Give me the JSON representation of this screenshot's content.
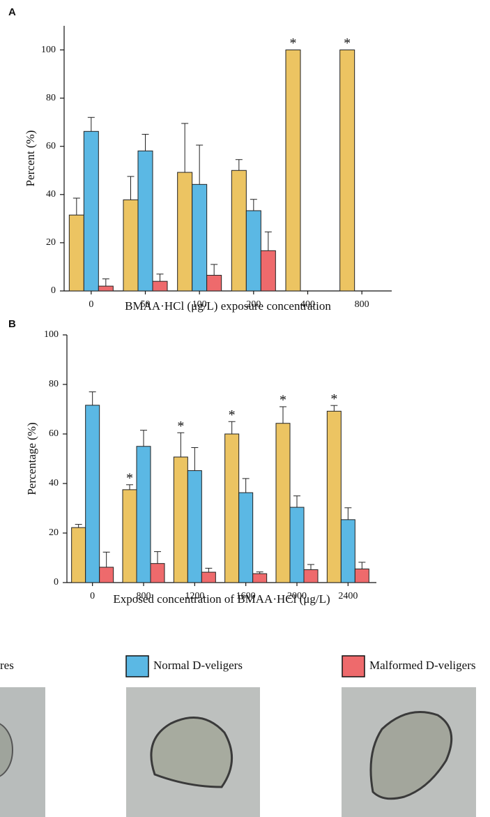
{
  "chart_data": [
    {
      "type": "bar",
      "panel": "A",
      "x_label": "BMAA·HCl (μg/L) exposure concentration",
      "y_label": "Percent (%)",
      "categories": [
        "0",
        "50",
        "100",
        "200",
        "400",
        "800"
      ],
      "series": [
        {
          "name": "res",
          "color": "#ecc462",
          "values": [
            31.5,
            37.8,
            49.2,
            50,
            100,
            100
          ],
          "errors": [
            7,
            9.7,
            20.3,
            4.5,
            0,
            0
          ]
        },
        {
          "name": "Normal D-veligers",
          "color": "#5bb8e4",
          "values": [
            66.2,
            58.1,
            44.2,
            33.3,
            0,
            0
          ],
          "errors": [
            5.8,
            6.9,
            16.3,
            4.7,
            0,
            0
          ]
        },
        {
          "name": "Malformed D-veligers",
          "color": "#ee6a6c",
          "values": [
            2,
            4,
            6.5,
            16.7,
            0,
            0
          ],
          "errors": [
            3,
            3,
            4.5,
            7.8,
            0,
            0
          ]
        }
      ],
      "annotations": [
        {
          "text": "*",
          "category": "400"
        },
        {
          "text": "*",
          "category": "800"
        }
      ],
      "ylim": [
        0,
        110
      ],
      "yticks": [
        0,
        20,
        40,
        60,
        80,
        100
      ]
    },
    {
      "type": "bar",
      "panel": "B",
      "x_label": "Exposed concentration of BMAA·HCl (μg/L)",
      "y_label": "Percentage (%)",
      "categories": [
        "0",
        "800",
        "1200",
        "1600",
        "2000",
        "2400"
      ],
      "series": [
        {
          "name": "res",
          "color": "#ecc462",
          "values": [
            22.2,
            37.5,
            50.7,
            60,
            64.3,
            69.2
          ],
          "errors": [
            1.3,
            2,
            9.8,
            5,
            6.7,
            2.3
          ]
        },
        {
          "name": "Normal D-veligers",
          "color": "#5bb8e4",
          "values": [
            71.6,
            55,
            45.2,
            36.3,
            30.4,
            25.4
          ],
          "errors": [
            5.4,
            6.5,
            9.3,
            5.7,
            4.6,
            4.8
          ]
        },
        {
          "name": "Malformed D-veligers",
          "color": "#ee6a6c",
          "values": [
            6.2,
            7.7,
            4.2,
            3.6,
            5.2,
            5.5
          ],
          "errors": [
            6.1,
            4.8,
            1.6,
            0.7,
            2.1,
            2.7
          ]
        }
      ],
      "annotations": [
        {
          "text": "*",
          "category": "800"
        },
        {
          "text": "*",
          "category": "1200"
        },
        {
          "text": "*",
          "category": "1600"
        },
        {
          "text": "*",
          "category": "2000"
        },
        {
          "text": "*",
          "category": "2400"
        }
      ],
      "ylim": [
        0,
        100
      ],
      "yticks": [
        0,
        20,
        40,
        60,
        80,
        100
      ]
    }
  ]
}
